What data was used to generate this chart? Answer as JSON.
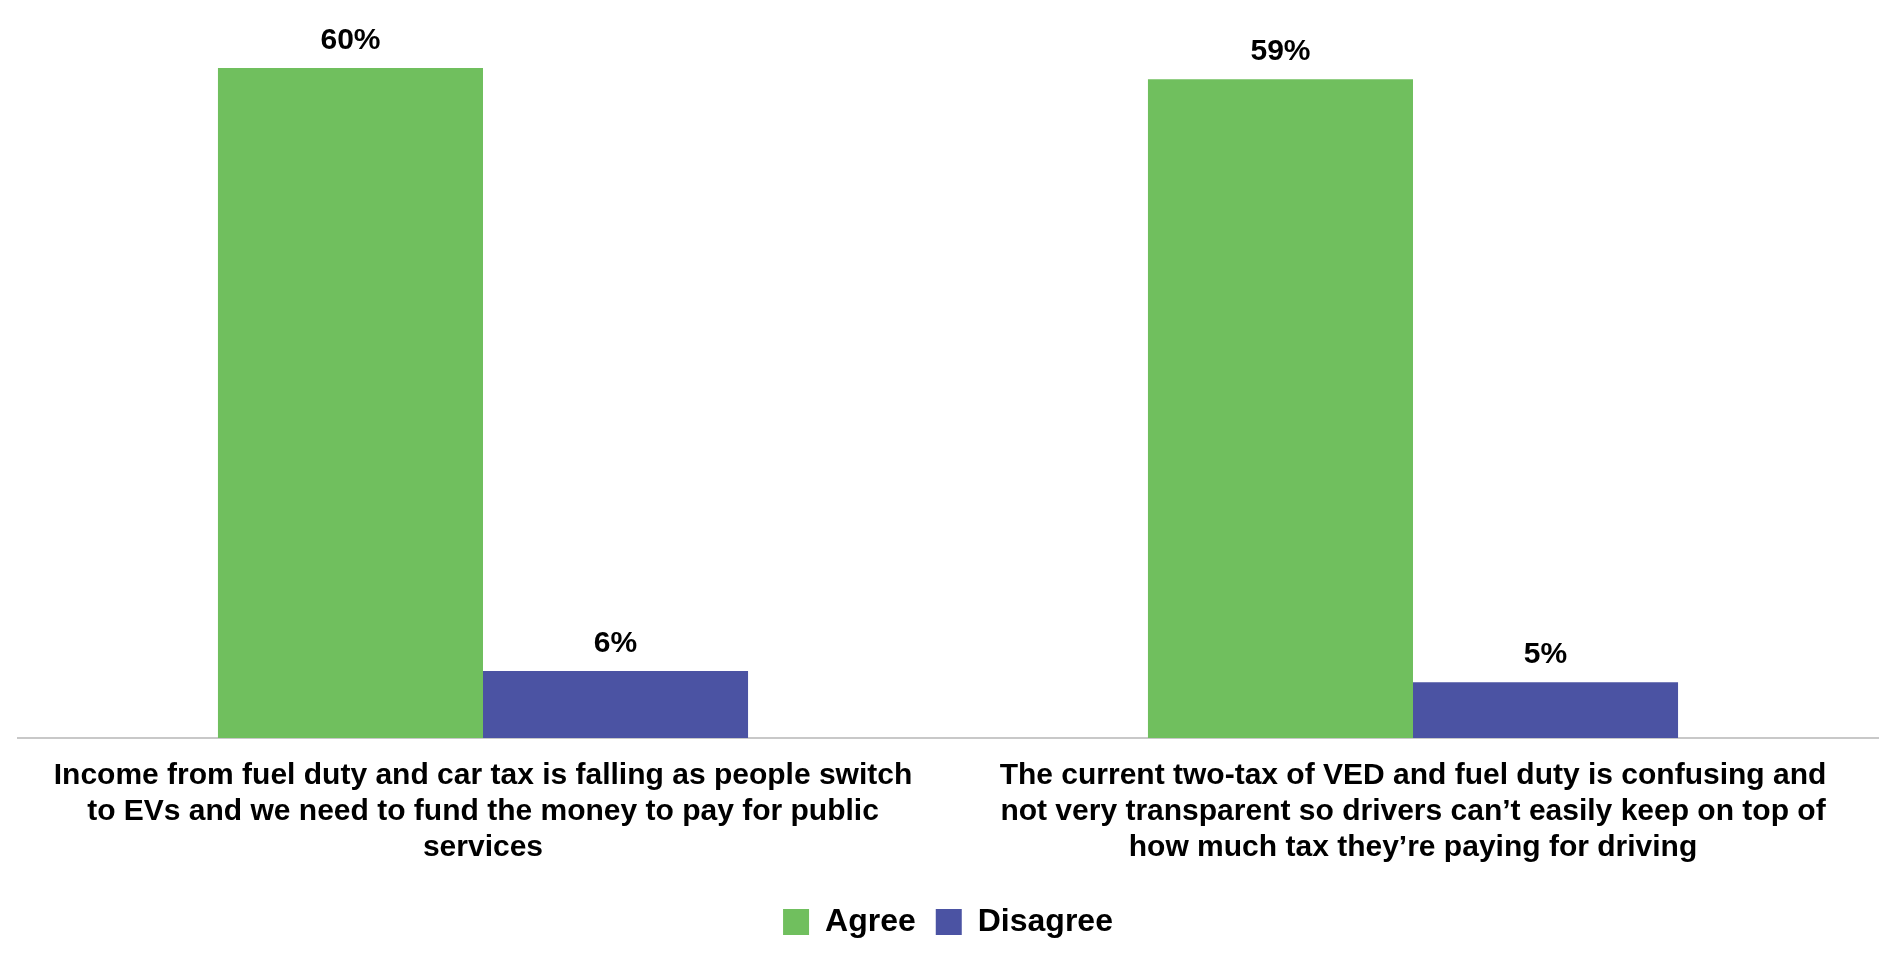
{
  "chart_data": {
    "type": "bar",
    "categories": [
      "Income from fuel duty and car tax is falling as people switch to EVs and we need to fund the money to pay for public services",
      "The current two-tax of VED and fuel duty is confusing and not very transparent so drivers can’t easily keep on top of how much tax they’re paying for driving"
    ],
    "series": [
      {
        "name": "Agree",
        "color": "#70bf5e",
        "values": [
          60,
          59
        ],
        "value_labels": [
          "60%",
          "59%"
        ]
      },
      {
        "name": "Disagree",
        "color": "#4b53a3",
        "values": [
          6,
          5
        ],
        "value_labels": [
          "6%",
          "5%"
        ]
      }
    ],
    "legend": "bottom",
    "grid": false
  }
}
